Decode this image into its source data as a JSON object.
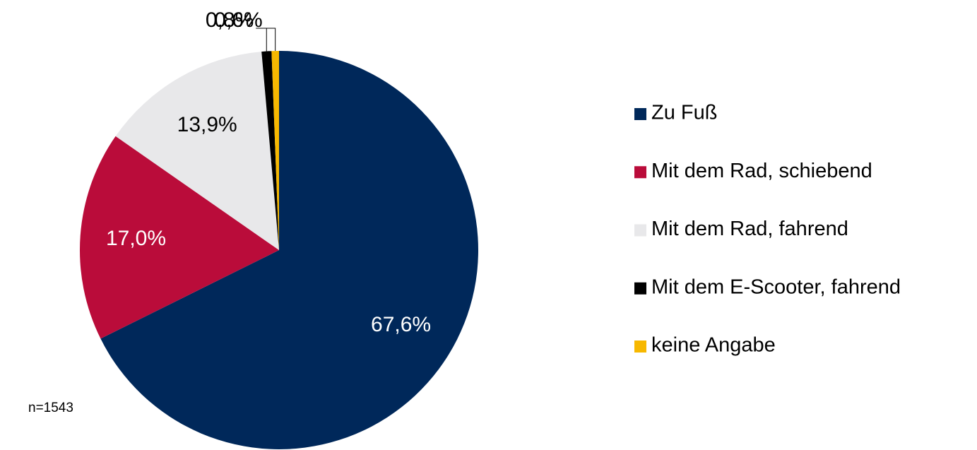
{
  "chart_data": {
    "type": "pie",
    "categories": [
      "Zu Fuß",
      "Mit dem Rad, schiebend",
      "Mit dem Rad, fahrend",
      "Mit dem E-Scooter, fahrend",
      "keine Angabe"
    ],
    "values": [
      67.6,
      17.0,
      13.9,
      0.8,
      0.6
    ],
    "value_labels": [
      "67,6%",
      "17,0%",
      "13,9%",
      "0,8%",
      "0,6%"
    ],
    "colors": [
      "#00285a",
      "#ba0c3a",
      "#e8e8ea",
      "#000000",
      "#f7b800"
    ],
    "annotation": "n=1543"
  }
}
